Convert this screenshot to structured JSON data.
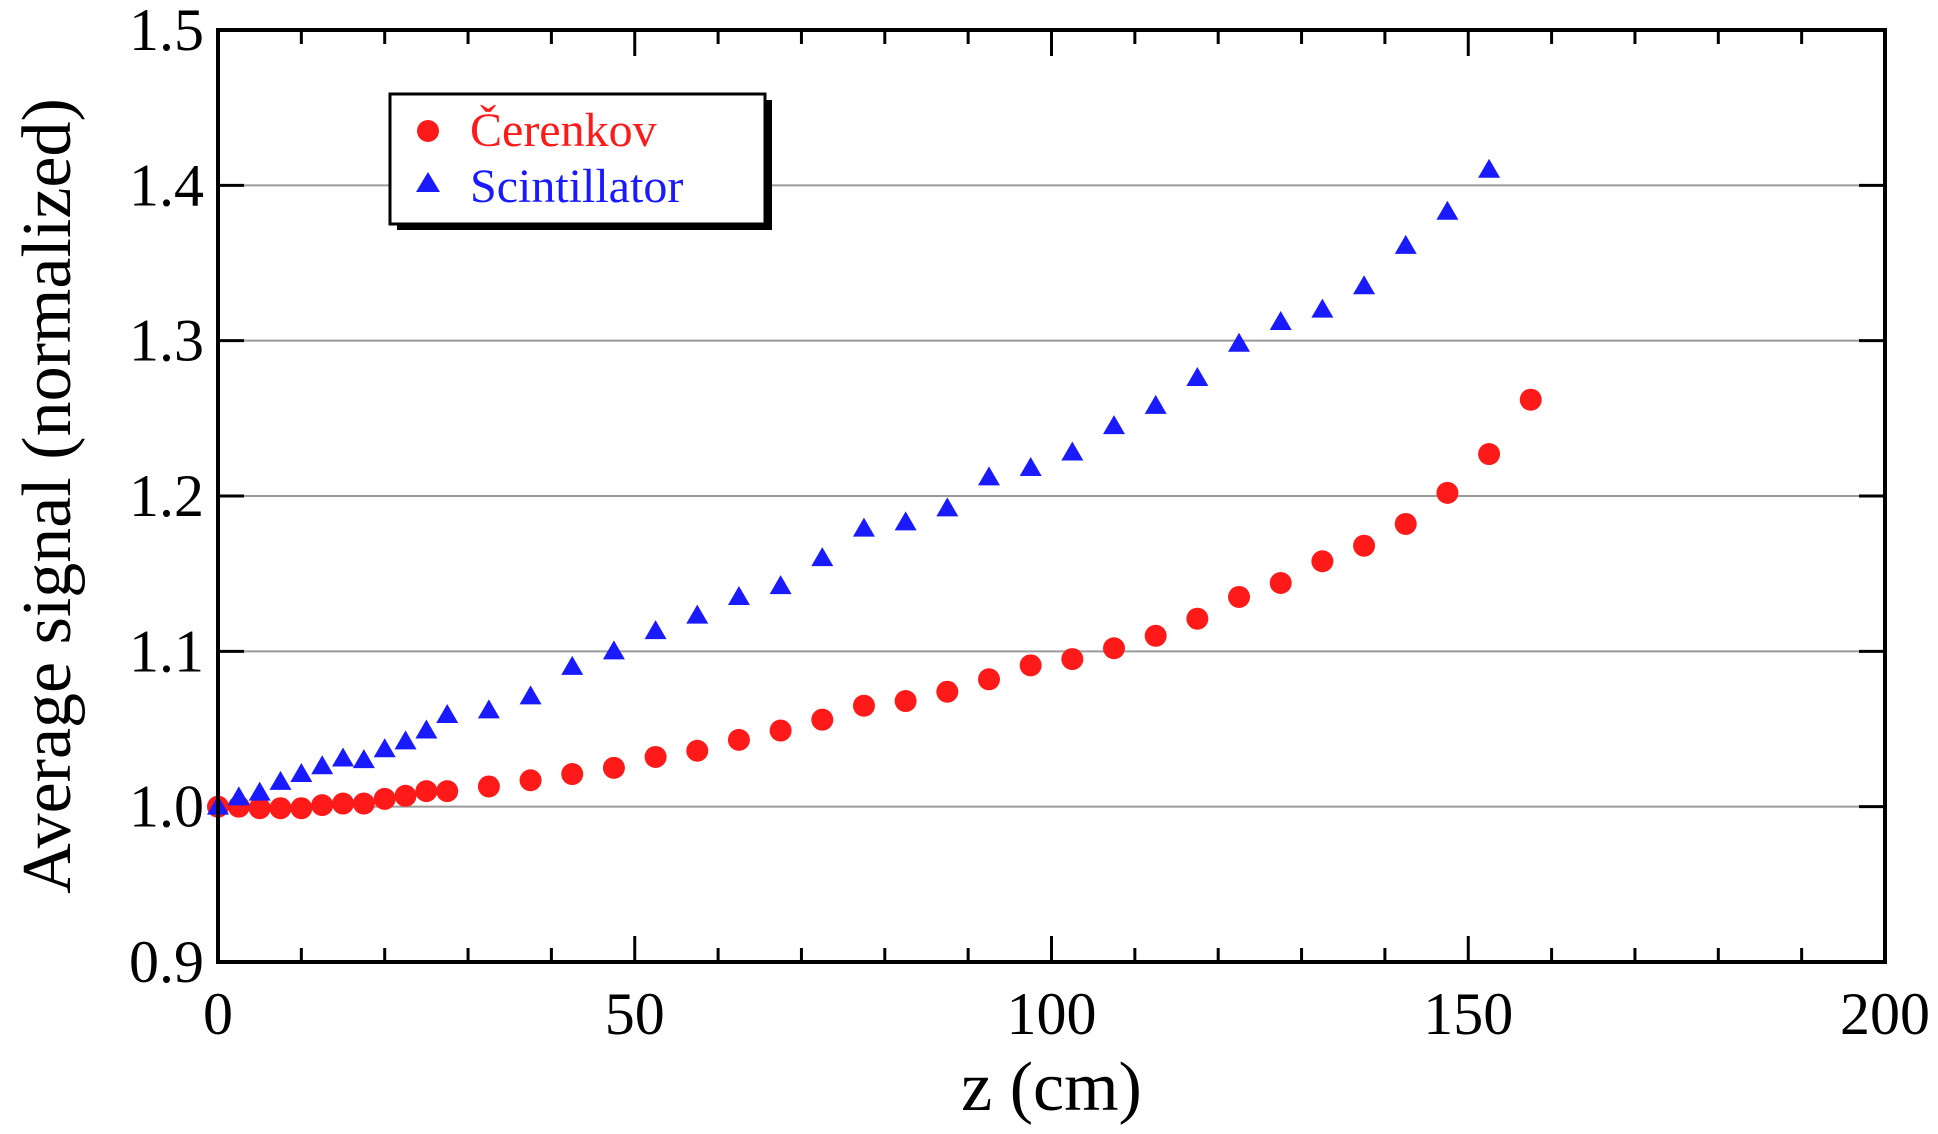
{
  "chart_data": {
    "type": "scatter",
    "title": "",
    "xlabel": "z (cm)",
    "ylabel": "Average signal (normalized)",
    "xlim": [
      0,
      200
    ],
    "ylim": [
      0.9,
      1.5
    ],
    "x_ticks": [
      "0",
      "50",
      "100",
      "150",
      "200"
    ],
    "y_ticks": [
      "0.9",
      "1.0",
      "1.1",
      "1.2",
      "1.3",
      "1.4",
      "1.5"
    ],
    "x_tick_values": [
      0,
      50,
      100,
      150,
      200
    ],
    "y_tick_values": [
      0.9,
      1.0,
      1.1,
      1.2,
      1.3,
      1.4,
      1.5
    ],
    "grid": "horizontal",
    "legend_position": "top-left",
    "series": [
      {
        "name": "Čerenkov",
        "marker": "circle",
        "color": "#ff1a1a",
        "x": [
          0,
          2.5,
          5,
          7.5,
          10,
          12.5,
          15,
          17.5,
          20,
          22.5,
          25,
          27.5,
          32.5,
          37.5,
          42.5,
          47.5,
          52.5,
          57.5,
          62.5,
          67.5,
          72.5,
          77.5,
          82.5,
          87.5,
          92.5,
          97.5,
          102.5,
          107.5,
          112.5,
          117.5,
          122.5,
          127.5,
          132.5,
          137.5,
          142.5,
          147.5,
          152.5,
          157.5
        ],
        "y": [
          1.0,
          1.0,
          0.999,
          0.999,
          0.999,
          1.001,
          1.002,
          1.002,
          1.005,
          1.007,
          1.01,
          1.01,
          1.013,
          1.017,
          1.021,
          1.025,
          1.032,
          1.036,
          1.043,
          1.049,
          1.056,
          1.065,
          1.068,
          1.074,
          1.082,
          1.091,
          1.095,
          1.102,
          1.11,
          1.121,
          1.135,
          1.144,
          1.158,
          1.168,
          1.182,
          1.202,
          1.227,
          1.262
        ]
      },
      {
        "name": "Scintillator",
        "marker": "triangle",
        "color": "#1a1aff",
        "x": [
          0,
          2.5,
          5,
          7.5,
          10,
          12.5,
          15,
          17.5,
          20,
          22.5,
          25,
          27.5,
          32.5,
          37.5,
          42.5,
          47.5,
          52.5,
          57.5,
          62.5,
          67.5,
          72.5,
          77.5,
          82.5,
          87.5,
          92.5,
          97.5,
          102.5,
          107.5,
          112.5,
          117.5,
          122.5,
          127.5,
          132.5,
          137.5,
          142.5,
          147.5,
          152.5
        ],
        "y": [
          1.0,
          1.006,
          1.009,
          1.016,
          1.021,
          1.026,
          1.031,
          1.03,
          1.037,
          1.042,
          1.049,
          1.059,
          1.062,
          1.071,
          1.09,
          1.1,
          1.113,
          1.123,
          1.135,
          1.142,
          1.16,
          1.179,
          1.183,
          1.192,
          1.212,
          1.218,
          1.228,
          1.245,
          1.258,
          1.276,
          1.298,
          1.312,
          1.32,
          1.335,
          1.361,
          1.383,
          1.41
        ]
      }
    ]
  }
}
